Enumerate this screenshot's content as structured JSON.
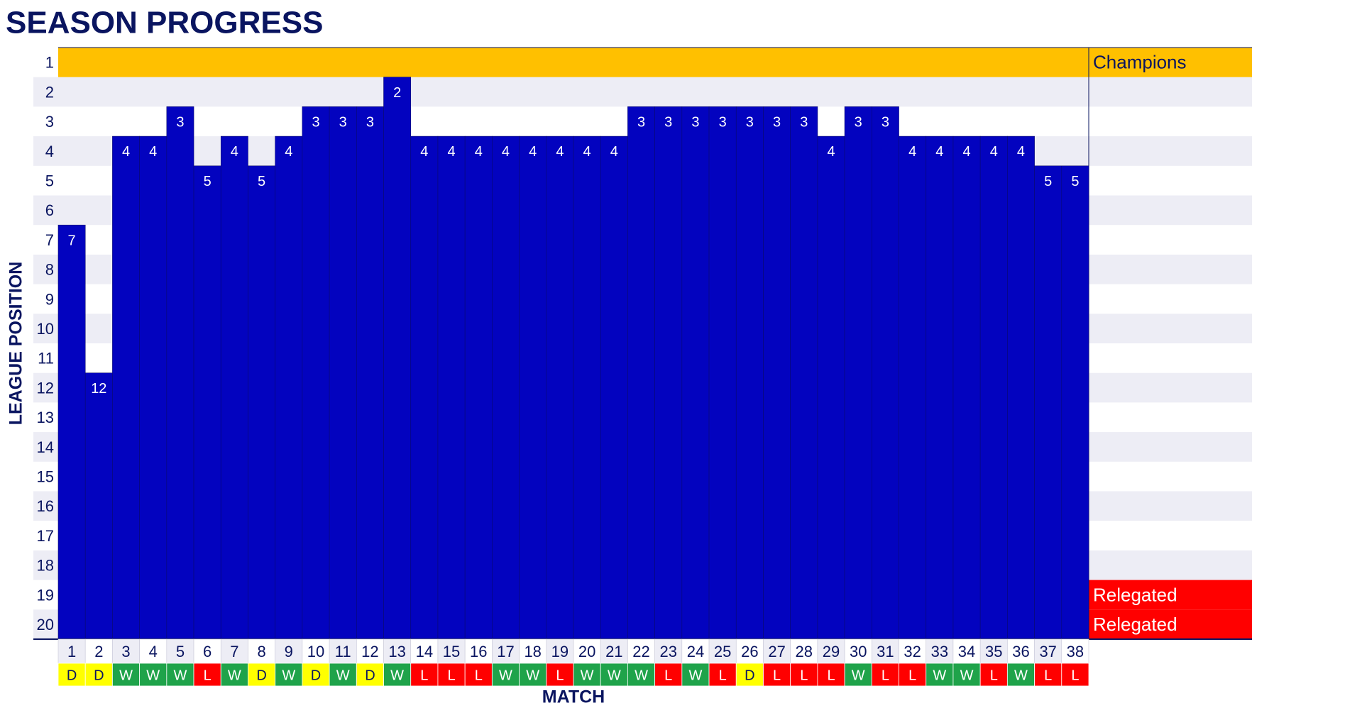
{
  "chart_data": {
    "type": "bar",
    "title": "SEASON PROGRESS",
    "ylabel": "LEAGUE POSITION",
    "xlabel": "MATCH",
    "categories": [
      1,
      2,
      3,
      4,
      5,
      6,
      7,
      8,
      9,
      10,
      11,
      12,
      13,
      14,
      15,
      16,
      17,
      18,
      19,
      20,
      21,
      22,
      23,
      24,
      25,
      26,
      27,
      28,
      29,
      30,
      31,
      32,
      33,
      34,
      35,
      36,
      37,
      38
    ],
    "values": [
      7,
      12,
      4,
      4,
      3,
      5,
      4,
      5,
      4,
      3,
      3,
      3,
      2,
      4,
      4,
      4,
      4,
      4,
      4,
      4,
      4,
      3,
      3,
      3,
      3,
      3,
      3,
      3,
      4,
      3,
      3,
      4,
      4,
      4,
      4,
      4,
      5,
      5
    ],
    "results": [
      "D",
      "D",
      "W",
      "W",
      "W",
      "L",
      "W",
      "D",
      "W",
      "D",
      "W",
      "D",
      "W",
      "L",
      "L",
      "L",
      "W",
      "W",
      "L",
      "W",
      "W",
      "W",
      "L",
      "W",
      "L",
      "D",
      "L",
      "L",
      "L",
      "W",
      "L",
      "L",
      "W",
      "W",
      "L",
      "W",
      "L",
      "L"
    ],
    "result_colors": {
      "W": "#1fa34a",
      "D": "#ffff00",
      "L": "#ff0000"
    },
    "color": "#0303bf",
    "ylim": [
      1,
      20
    ],
    "yticks": [
      1,
      2,
      3,
      4,
      5,
      6,
      7,
      8,
      9,
      10,
      11,
      12,
      13,
      14,
      15,
      16,
      17,
      18,
      19,
      20
    ],
    "zones": [
      {
        "position": 1,
        "label": "Champions",
        "color": "#ffc000"
      },
      {
        "position": 19,
        "label": "Relegated",
        "color": "#ff0000"
      },
      {
        "position": 20,
        "label": "Relegated",
        "color": "#ff0000"
      }
    ]
  }
}
